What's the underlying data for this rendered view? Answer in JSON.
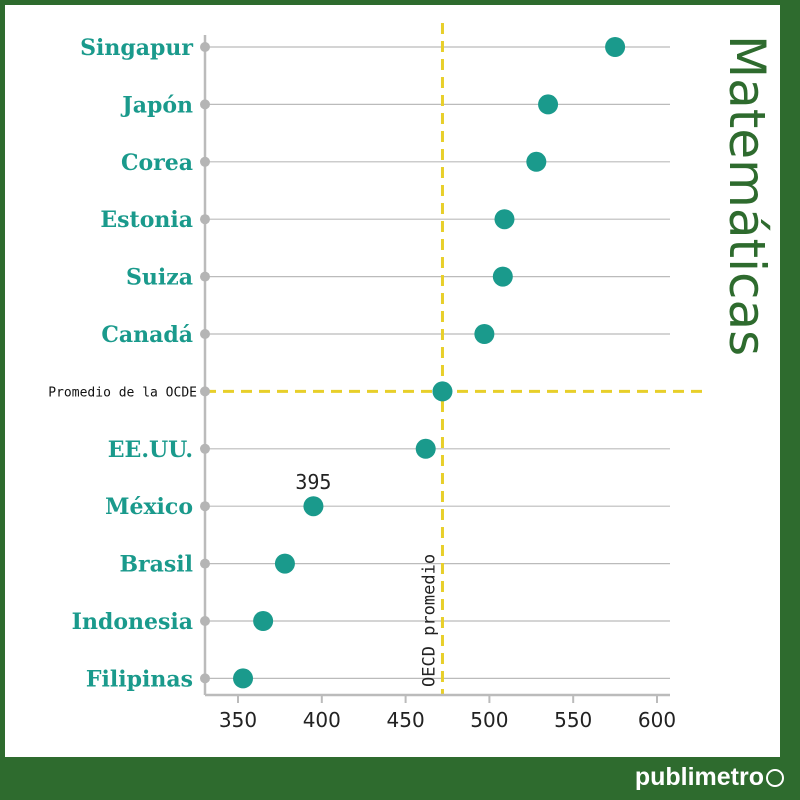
{
  "chart_data": {
    "type": "scatter",
    "title": "Matemáticas",
    "categories": [
      "Singapur",
      "Japón",
      "Corea",
      "Estonia",
      "Suiza",
      "Canadá",
      "Promedio de la OCDE",
      "EE.UU.",
      "México",
      "Brasil",
      "Indonesia",
      "Filipinas"
    ],
    "values": [
      575,
      535,
      528,
      509,
      508,
      497,
      472,
      462,
      395,
      378,
      365,
      353
    ],
    "x_ticks": [
      "350",
      "400",
      "450",
      "500",
      "550",
      "600"
    ],
    "xlim": [
      330,
      610
    ],
    "reference_value": 472,
    "reference_label": "OECD promedio",
    "annotation": {
      "category": "México",
      "text": "395"
    },
    "colors": {
      "point": "#1a9a8c",
      "reference": "#e8cf2a",
      "grid": "#bbbbbb",
      "frame": "#2e6b2e"
    },
    "grid": true
  },
  "brand": "publimetro"
}
